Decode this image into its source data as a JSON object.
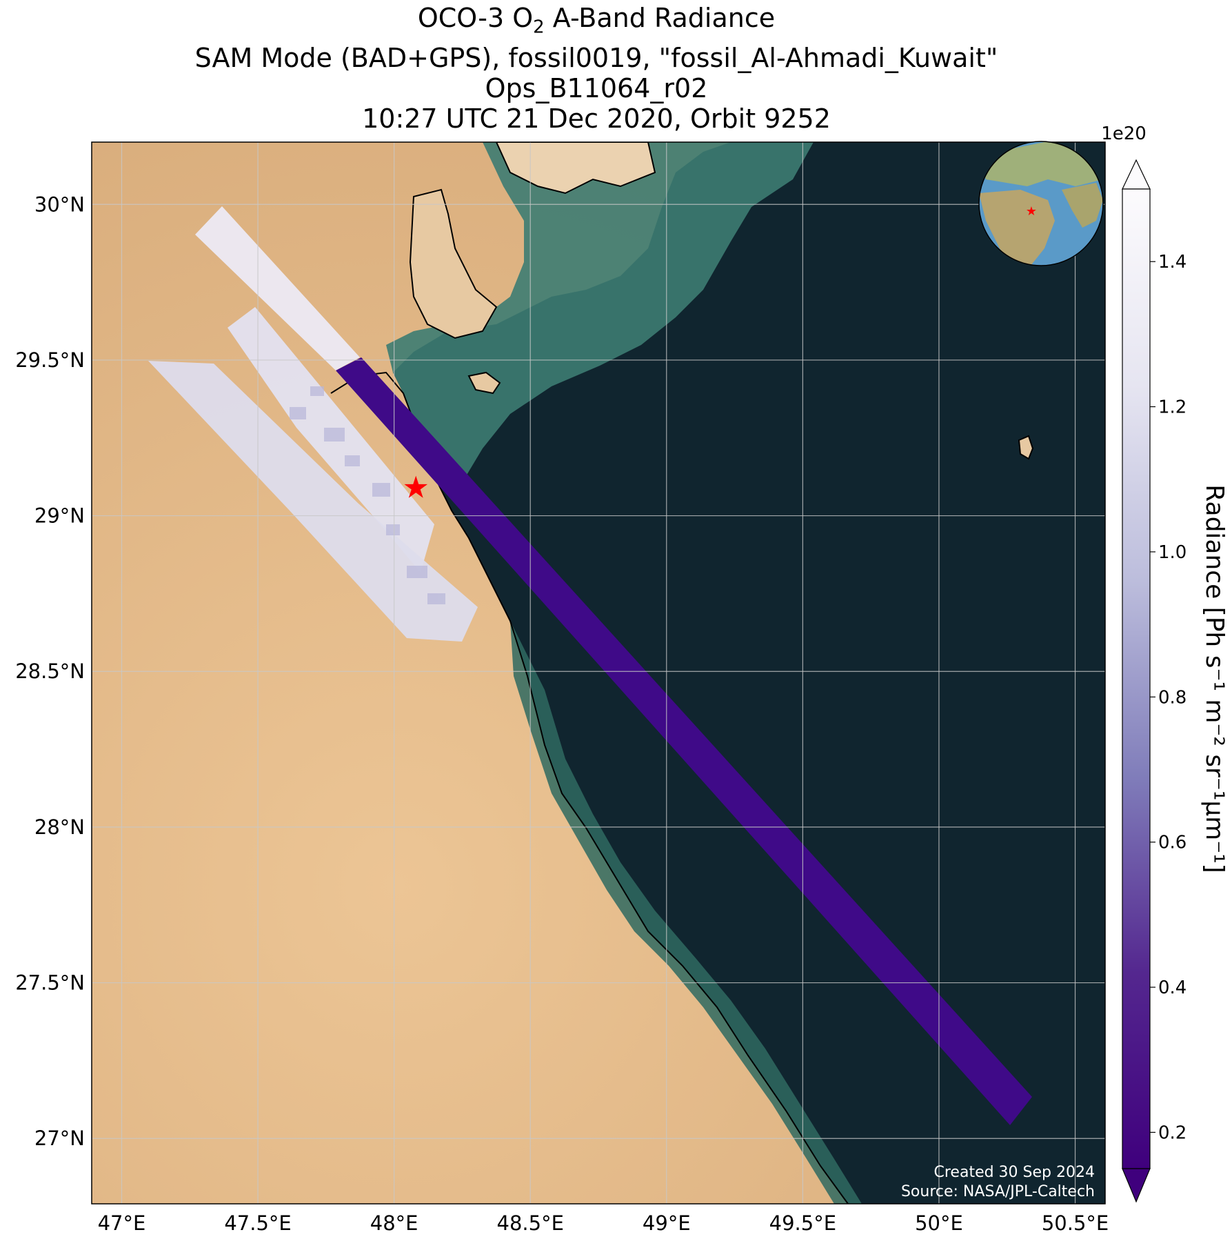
{
  "title": {
    "line1_prefix": "OCO-3 O",
    "line1_sub": "2",
    "line1_suffix": " A-Band Radiance",
    "line2": "SAM Mode (BAD+GPS), fossil0019, \"fossil_Al-Ahmadi_Kuwait\"",
    "line3": "Ops_B11064_r02",
    "line4": "10:27 UTC 21 Dec 2020, Orbit 9252"
  },
  "axes": {
    "lon_ticks": [
      "47°E",
      "47.5°E",
      "48°E",
      "48.5°E",
      "49°E",
      "49.5°E",
      "50°E",
      "50.5°E"
    ],
    "lat_ticks": [
      "30°N",
      "29.5°N",
      "29°N",
      "28.5°N",
      "28°N",
      "27.5°N",
      "27°N"
    ],
    "lon_range": [
      46.89,
      50.61
    ],
    "lat_range": [
      26.79,
      30.2
    ],
    "grid": true
  },
  "colorbar": {
    "label": "Radiance [Ph s⁻¹ m⁻² sr⁻¹μm⁻¹]",
    "multiplier": "1e20",
    "ticks": [
      "0.2",
      "0.4",
      "0.6",
      "0.8",
      "1.0",
      "1.2",
      "1.4"
    ],
    "range": [
      0.2,
      1.5
    ],
    "colormap": "Purples_r",
    "extend": "both"
  },
  "target_marker": {
    "label": "★",
    "lon": 48.08,
    "lat": 29.09,
    "color": "#ff0000"
  },
  "inset_globe": {
    "marker": "★",
    "marker_color": "#ff0000"
  },
  "credits": {
    "created": "Created 30 Sep 2024",
    "source": "Source: NASA/JPL-Caltech"
  },
  "colors": {
    "land": "#e2b98a",
    "water": "#10252f",
    "shallow_water": "#3f7a70",
    "swath_water": "#3f0a88",
    "swath_land": "#ecebf4"
  }
}
